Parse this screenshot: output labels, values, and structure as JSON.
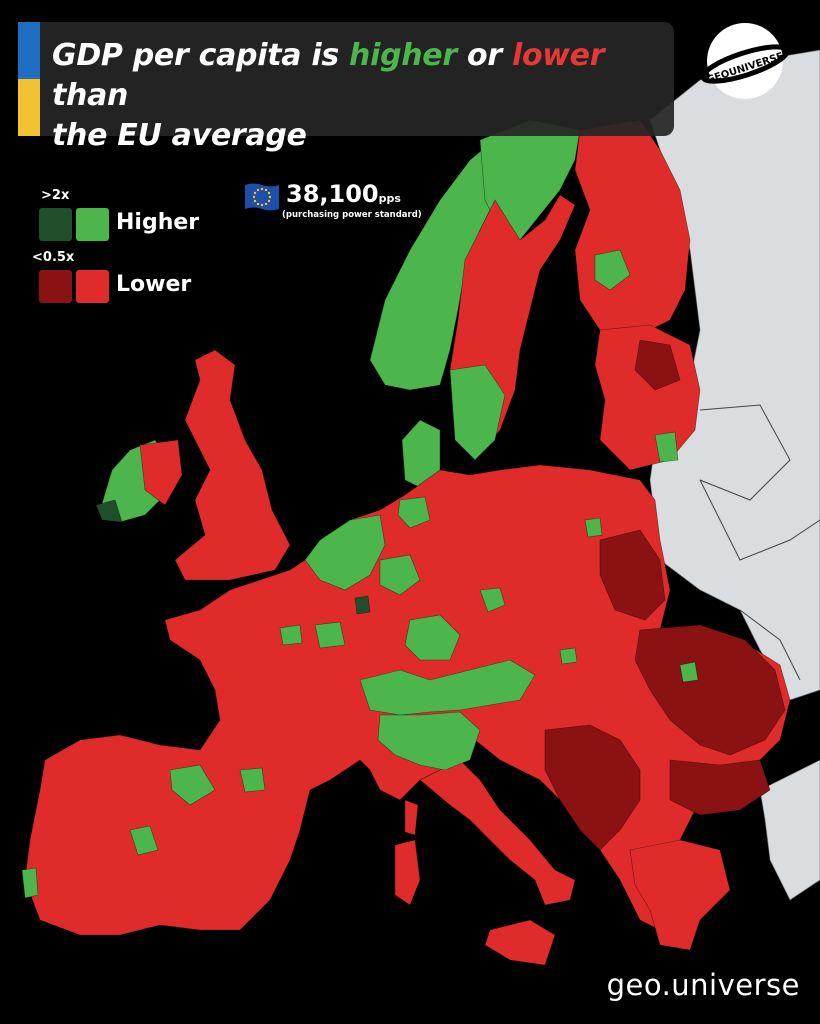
{
  "title": {
    "part1": "GDP per capita is ",
    "higher": "higher",
    "part2": " or ",
    "lower": "lower",
    "part3": " than",
    "line2": "the EU average"
  },
  "logo": {
    "text": "GEOUNIVERSE",
    "icon": "globe-ring-logo"
  },
  "legend": {
    "higher_threshold": ">2x",
    "higher_label": "Higher",
    "lower_threshold": "<0.5x",
    "lower_label": "Lower",
    "colors": {
      "higher_strong": "#1e4f2a",
      "higher": "#4cb54c",
      "lower_strong": "#8b1212",
      "lower": "#e02b2b"
    }
  },
  "eu_average": {
    "value": "38,100",
    "unit": "pps",
    "note": "(purchasing power standard)",
    "icon": "eu-flag-icon"
  },
  "map_colors": {
    "background": "#000000",
    "non_eu_land": "#d9dde0",
    "higher": "#4cb54c",
    "higher_strong": "#1e4f2a",
    "lower": "#e02b2b",
    "lower_strong": "#8b1212"
  },
  "footer": {
    "handle": "geo.universe"
  }
}
